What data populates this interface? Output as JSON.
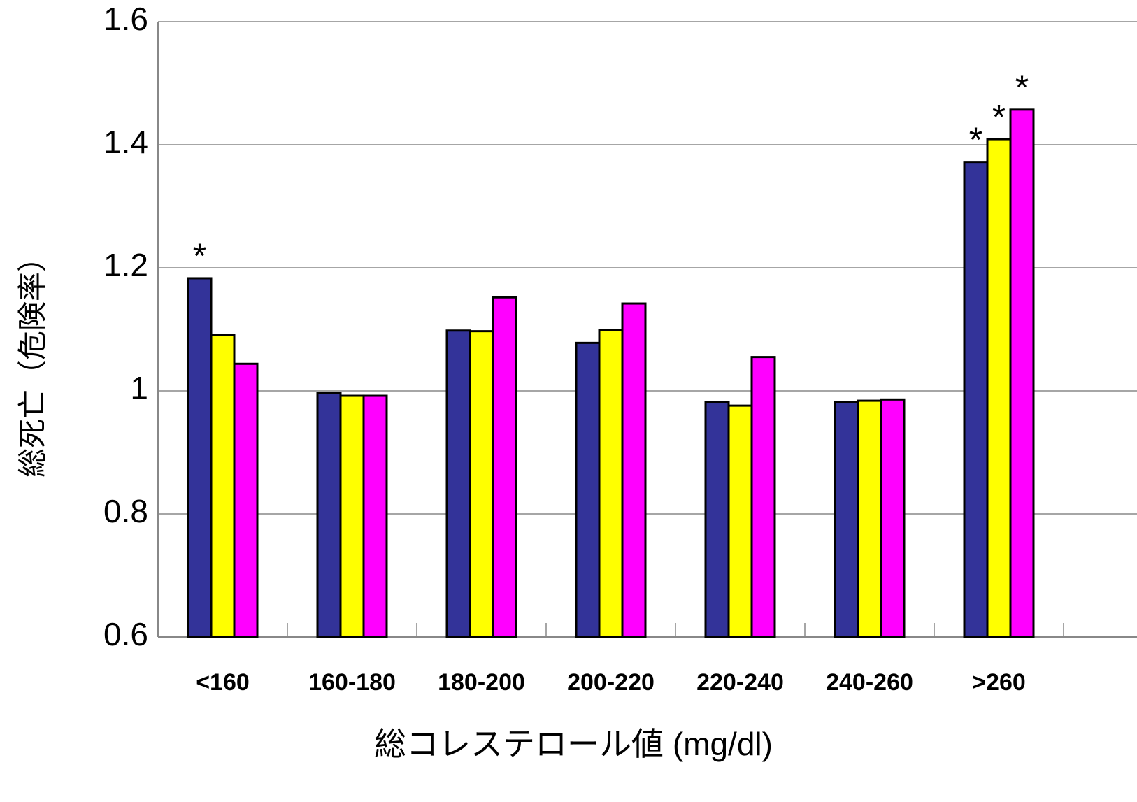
{
  "chart_data": {
    "type": "bar",
    "x_label": "総コレステロール値 (mg/dl)",
    "y_label": "総死亡（危険率）",
    "categories": [
      "<160",
      "160-180",
      "180-200",
      "200-220",
      "220-240",
      "240-260",
      ">260"
    ],
    "series": [
      {
        "color": "#333399",
        "values": [
          1.183,
          0.997,
          1.098,
          1.078,
          0.982,
          0.982,
          1.372
        ]
      },
      {
        "color": "#ffff00",
        "values": [
          1.091,
          0.992,
          1.097,
          1.099,
          0.976,
          0.984,
          1.409
        ]
      },
      {
        "color": "#ff00ff",
        "values": [
          1.044,
          0.992,
          1.152,
          1.142,
          1.055,
          0.986,
          1.457
        ]
      }
    ],
    "annotations": [
      {
        "text": "*",
        "series": 0,
        "category": 0
      },
      {
        "text": "*",
        "series": 0,
        "category": 6
      },
      {
        "text": "*",
        "series": 1,
        "category": 6
      },
      {
        "text": "*",
        "series": 2,
        "category": 6
      }
    ],
    "ylim": [
      0.6,
      1.6
    ],
    "yticks": [
      0.6,
      0.8,
      1,
      1.2,
      1.4,
      1.6
    ],
    "grid": true
  }
}
